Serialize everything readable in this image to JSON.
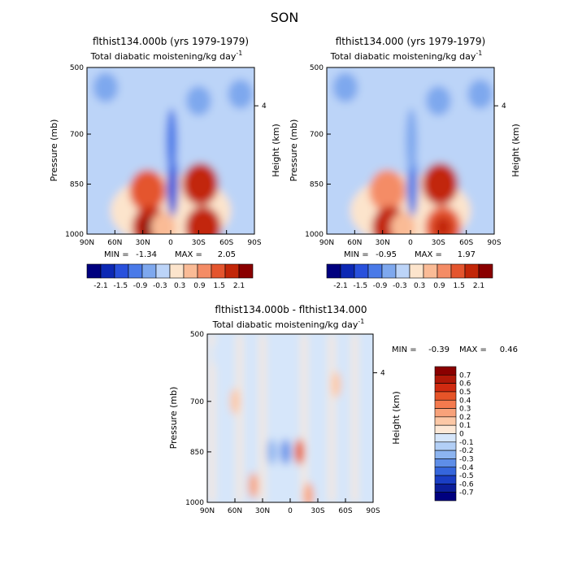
{
  "page_title": "SON",
  "chart_data": [
    {
      "type": "heatmap",
      "id": "left",
      "title": "flthist134.000b (yrs 1979-1979)",
      "subtitle": "Total diabatic moistening/kg day",
      "subtitle_sup": "-1",
      "ylabel": "Pressure (mb)",
      "ylabel_right": "Height (km)",
      "x_ticks": [
        "90N",
        "60N",
        "30N",
        "0",
        "30S",
        "60S",
        "90S"
      ],
      "y_ticks": [
        "500",
        "700",
        "850",
        "1000"
      ],
      "y_right_ticks": [
        "4"
      ],
      "stats": {
        "min_label": "MIN =",
        "min": "-1.34",
        "max_label": "MAX =",
        "max": "2.05"
      },
      "colorbar_labels": [
        "-2.1",
        "-1.5",
        "-0.9",
        "-0.3",
        "0.3",
        "0.9",
        "1.5",
        "2.1"
      ],
      "features": [
        {
          "lat": -2,
          "p": 850,
          "value": -1.3
        },
        {
          "lat": -1,
          "p": 720,
          "value": -0.9
        },
        {
          "lat": 25,
          "p": 870,
          "value": 1.3
        },
        {
          "lat": 22,
          "p": 980,
          "value": 2.0
        },
        {
          "lat": -32,
          "p": 850,
          "value": 1.9
        },
        {
          "lat": -35,
          "p": 980,
          "value": 1.6
        },
        {
          "lat": 8,
          "p": 980,
          "value": 0.8
        },
        {
          "lat": -30,
          "p": 600,
          "value": -0.4
        },
        {
          "lat": -75,
          "p": 580,
          "value": -0.4
        },
        {
          "lat": 70,
          "p": 560,
          "value": -0.3
        }
      ]
    },
    {
      "type": "heatmap",
      "id": "right",
      "title": "flthist134.000 (yrs 1979-1979)",
      "subtitle": "Total diabatic moistening/kg day",
      "subtitle_sup": "-1",
      "ylabel": "Pressure (mb)",
      "ylabel_right": "Height (km)",
      "x_ticks": [
        "90N",
        "60N",
        "30N",
        "0",
        "30S",
        "60S",
        "90S"
      ],
      "y_ticks": [
        "500",
        "700",
        "850",
        "1000"
      ],
      "y_right_ticks": [
        "4"
      ],
      "stats": {
        "min_label": "MIN =",
        "min": "-0.95",
        "max_label": "MAX =",
        "max": "1.97"
      },
      "colorbar_labels": [
        "-2.1",
        "-1.5",
        "-0.9",
        "-0.3",
        "0.3",
        "0.9",
        "1.5",
        "2.1"
      ],
      "features": [
        {
          "lat": -2,
          "p": 850,
          "value": -0.9
        },
        {
          "lat": -1,
          "p": 720,
          "value": -0.7
        },
        {
          "lat": 25,
          "p": 870,
          "value": 1.2
        },
        {
          "lat": 22,
          "p": 980,
          "value": 1.9
        },
        {
          "lat": -32,
          "p": 850,
          "value": 1.8
        },
        {
          "lat": -35,
          "p": 980,
          "value": 1.5
        },
        {
          "lat": 8,
          "p": 980,
          "value": 0.8
        },
        {
          "lat": -30,
          "p": 600,
          "value": -0.4
        },
        {
          "lat": -75,
          "p": 580,
          "value": -0.4
        },
        {
          "lat": 70,
          "p": 560,
          "value": -0.3
        }
      ]
    },
    {
      "type": "heatmap",
      "id": "diff",
      "title": "flthist134.000b - flthist134.000",
      "subtitle": "Total diabatic moistening/kg day",
      "subtitle_sup": "-1",
      "ylabel": "Pressure (mb)",
      "ylabel_right": "Height (km)",
      "x_ticks": [
        "90N",
        "60N",
        "30N",
        "0",
        "30S",
        "60S",
        "90S"
      ],
      "y_ticks": [
        "500",
        "700",
        "850",
        "1000"
      ],
      "y_right_ticks": [
        "4"
      ],
      "stats": {
        "min_label": "MIN =",
        "min": "-0.39",
        "max_label": "MAX =",
        "max": "0.46"
      },
      "colorbar_labels": [
        "0.7",
        "0.6",
        "0.5",
        "0.4",
        "0.3",
        "0.2",
        "0.1",
        "0",
        "-0.1",
        "-0.2",
        "-0.3",
        "-0.4",
        "-0.5",
        "-0.6",
        "-0.7"
      ],
      "features": [
        {
          "lat": 5,
          "p": 850,
          "value": -0.39
        },
        {
          "lat": 20,
          "p": 850,
          "value": -0.3
        },
        {
          "lat": -10,
          "p": 850,
          "value": 0.46
        },
        {
          "lat": 40,
          "p": 950,
          "value": 0.2
        },
        {
          "lat": -20,
          "p": 980,
          "value": 0.2
        },
        {
          "lat": 60,
          "p": 700,
          "value": 0.1
        },
        {
          "lat": -50,
          "p": 650,
          "value": 0.1
        },
        {
          "lat": 80,
          "p": 560,
          "value": -0.1
        },
        {
          "lat": -80,
          "p": 600,
          "value": -0.1
        }
      ]
    }
  ],
  "colors": {
    "div11": [
      "#00007f",
      "#0c28b4",
      "#2850dc",
      "#4a7ae8",
      "#7ea8ee",
      "#bcd4f8",
      "#fce4cc",
      "#fabb96",
      "#f48c66",
      "#e4552e",
      "#c22608",
      "#8a0000"
    ],
    "div15": [
      "#8a0000",
      "#b01808",
      "#d02a10",
      "#e65428",
      "#f47a4e",
      "#f8a27a",
      "#fcc8a6",
      "#fde8d6",
      "#d6e6fa",
      "#b2cff6",
      "#8cb4f0",
      "#5e8ee8",
      "#3566dc",
      "#1a3ec4",
      "#0c1e9a",
      "#00007f"
    ]
  }
}
